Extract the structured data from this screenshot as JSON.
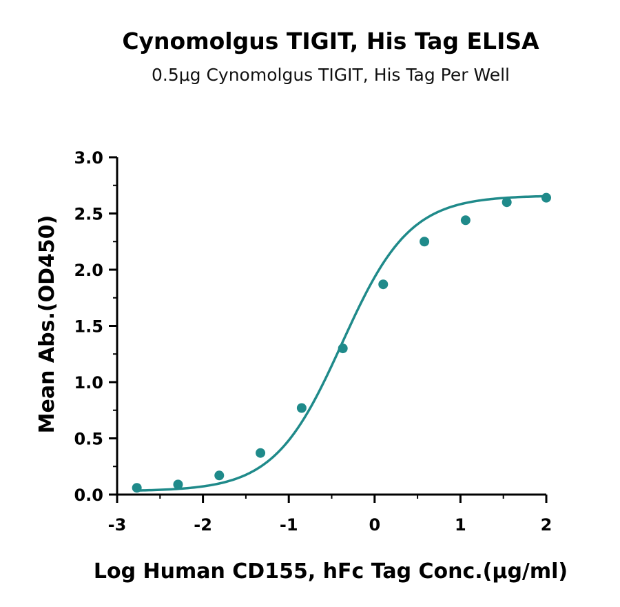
{
  "chart_data": {
    "type": "scatter",
    "title": "Cynomolgus TIGIT, His Tag ELISA",
    "subtitle": "0.5μg Cynomolgus TIGIT, His Tag Per Well",
    "xlabel": "Log Human CD155, hFc Tag Conc.(μg/ml)",
    "ylabel": "Mean Abs.(OD450)",
    "xlim": [
      -3,
      2
    ],
    "ylim": [
      0,
      3.0
    ],
    "x_ticks": [
      "-3",
      "-2",
      "-1",
      "0",
      "1",
      "2"
    ],
    "y_ticks": [
      "0.0",
      "0.5",
      "1.0",
      "1.5",
      "2.0",
      "2.5",
      "3.0"
    ],
    "grid": false,
    "color": "#1f8a8a",
    "series": [
      {
        "x": [
          -2.77,
          -2.29,
          -1.81,
          -1.33,
          -0.85,
          -0.37,
          0.1,
          0.58,
          1.06,
          1.54,
          2.0
        ],
        "y": [
          0.06,
          0.09,
          0.17,
          0.37,
          0.77,
          1.3,
          1.87,
          2.25,
          2.44,
          2.6,
          2.64
        ]
      }
    ],
    "fit_curve": {
      "type": "4PL",
      "bottom": 0.03,
      "top": 2.66,
      "logEC50": -0.38,
      "hill": 1.1
    }
  }
}
